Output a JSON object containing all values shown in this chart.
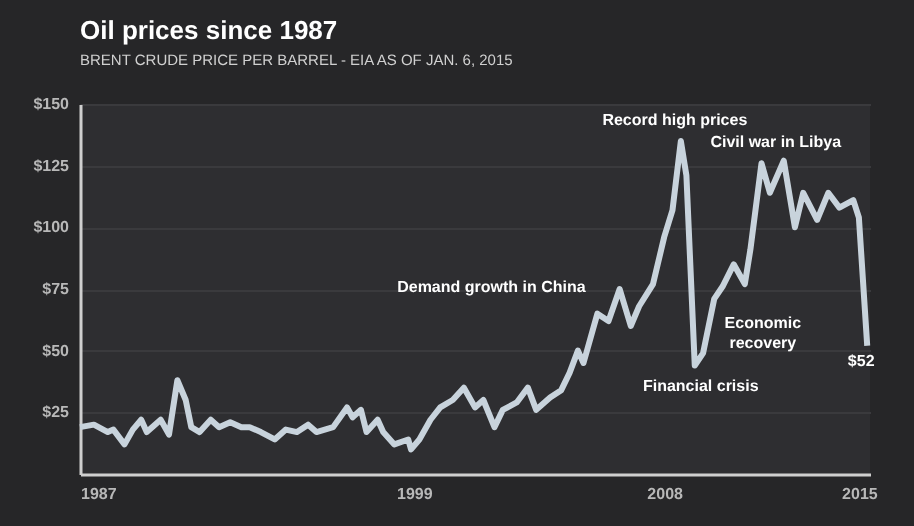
{
  "chart_data": {
    "type": "line",
    "title": "Oil prices since 1987",
    "subtitle": "BRENT CRUDE PRICE PER BARREL - EIA AS OF JAN. 6, 2015",
    "color": "#c8d3dc",
    "grid": "y",
    "x": [
      1987.0,
      1987.5,
      1988.0,
      1988.2,
      1988.6,
      1988.9,
      1989.2,
      1989.4,
      1989.9,
      1990.2,
      1990.5,
      1990.8,
      1991.0,
      1991.3,
      1991.7,
      1992.0,
      1992.4,
      1992.8,
      1993.1,
      1993.5,
      1994.0,
      1994.4,
      1994.8,
      1995.2,
      1995.5,
      1996.1,
      1996.6,
      1996.8,
      1997.1,
      1997.3,
      1997.7,
      1997.9,
      1998.3,
      1998.8,
      1998.9,
      1999.2,
      1999.6,
      1999.95,
      2000.4,
      2000.8,
      2001.2,
      2001.5,
      2001.9,
      2002.2,
      2002.7,
      2003.1,
      2003.4,
      2003.9,
      2004.3,
      2004.6,
      2004.9,
      2005.1,
      2005.6,
      2006.0,
      2006.4,
      2006.8,
      2007.1,
      2007.6,
      2008.0,
      2008.3,
      2008.6,
      2008.8,
      2009.1,
      2009.4,
      2009.8,
      2010.1,
      2010.5,
      2010.9,
      2011.1,
      2011.5,
      2011.8,
      2012.3,
      2012.7,
      2013.0,
      2013.5,
      2013.9,
      2014.3,
      2014.8,
      2015.0,
      2015.3
    ],
    "values": [
      19,
      20,
      17,
      18,
      12,
      18,
      22,
      17,
      22,
      16,
      38,
      30,
      19,
      17,
      22,
      19,
      21,
      19,
      19,
      17,
      14,
      18,
      17,
      20,
      17,
      19,
      27,
      23,
      26,
      17,
      22,
      17,
      12,
      14,
      10,
      14,
      22,
      27,
      30,
      35,
      27,
      30,
      19,
      26,
      29,
      35,
      26,
      31,
      34,
      41,
      50,
      45,
      65,
      62,
      75,
      60,
      68,
      77,
      96,
      107,
      135,
      121,
      44,
      49,
      71,
      76,
      85,
      77,
      91,
      126,
      114,
      127,
      100,
      114,
      103,
      114,
      108,
      111,
      104,
      52
    ],
    "xlim": [
      1987,
      2015.4
    ],
    "xticks": [
      1987,
      1999,
      2008,
      2015
    ],
    "ylim": [
      0,
      150
    ],
    "yticks": [
      {
        "value": 25,
        "label": "$25"
      },
      {
        "value": 50,
        "label": "$50"
      },
      {
        "value": 75,
        "label": "$75"
      },
      {
        "value": 100,
        "label": "$100"
      },
      {
        "value": 125,
        "label": "$125"
      },
      {
        "value": 150,
        "label": "$150"
      }
    ],
    "annotations": [
      {
        "text": "Demand growth in China",
        "x": 2005.6,
        "y": 65
      },
      {
        "text": "Record high prices",
        "x": 2008.6,
        "y": 135
      },
      {
        "text": "Civil war in Libya",
        "x": 2012.3,
        "y": 127
      },
      {
        "text": "Economic recovery",
        "x": 2010.9,
        "y": 77
      },
      {
        "text": "Financial crisis",
        "x": 2009.1,
        "y": 44
      },
      {
        "text": "$52",
        "x": 2015.3,
        "y": 52
      }
    ]
  }
}
